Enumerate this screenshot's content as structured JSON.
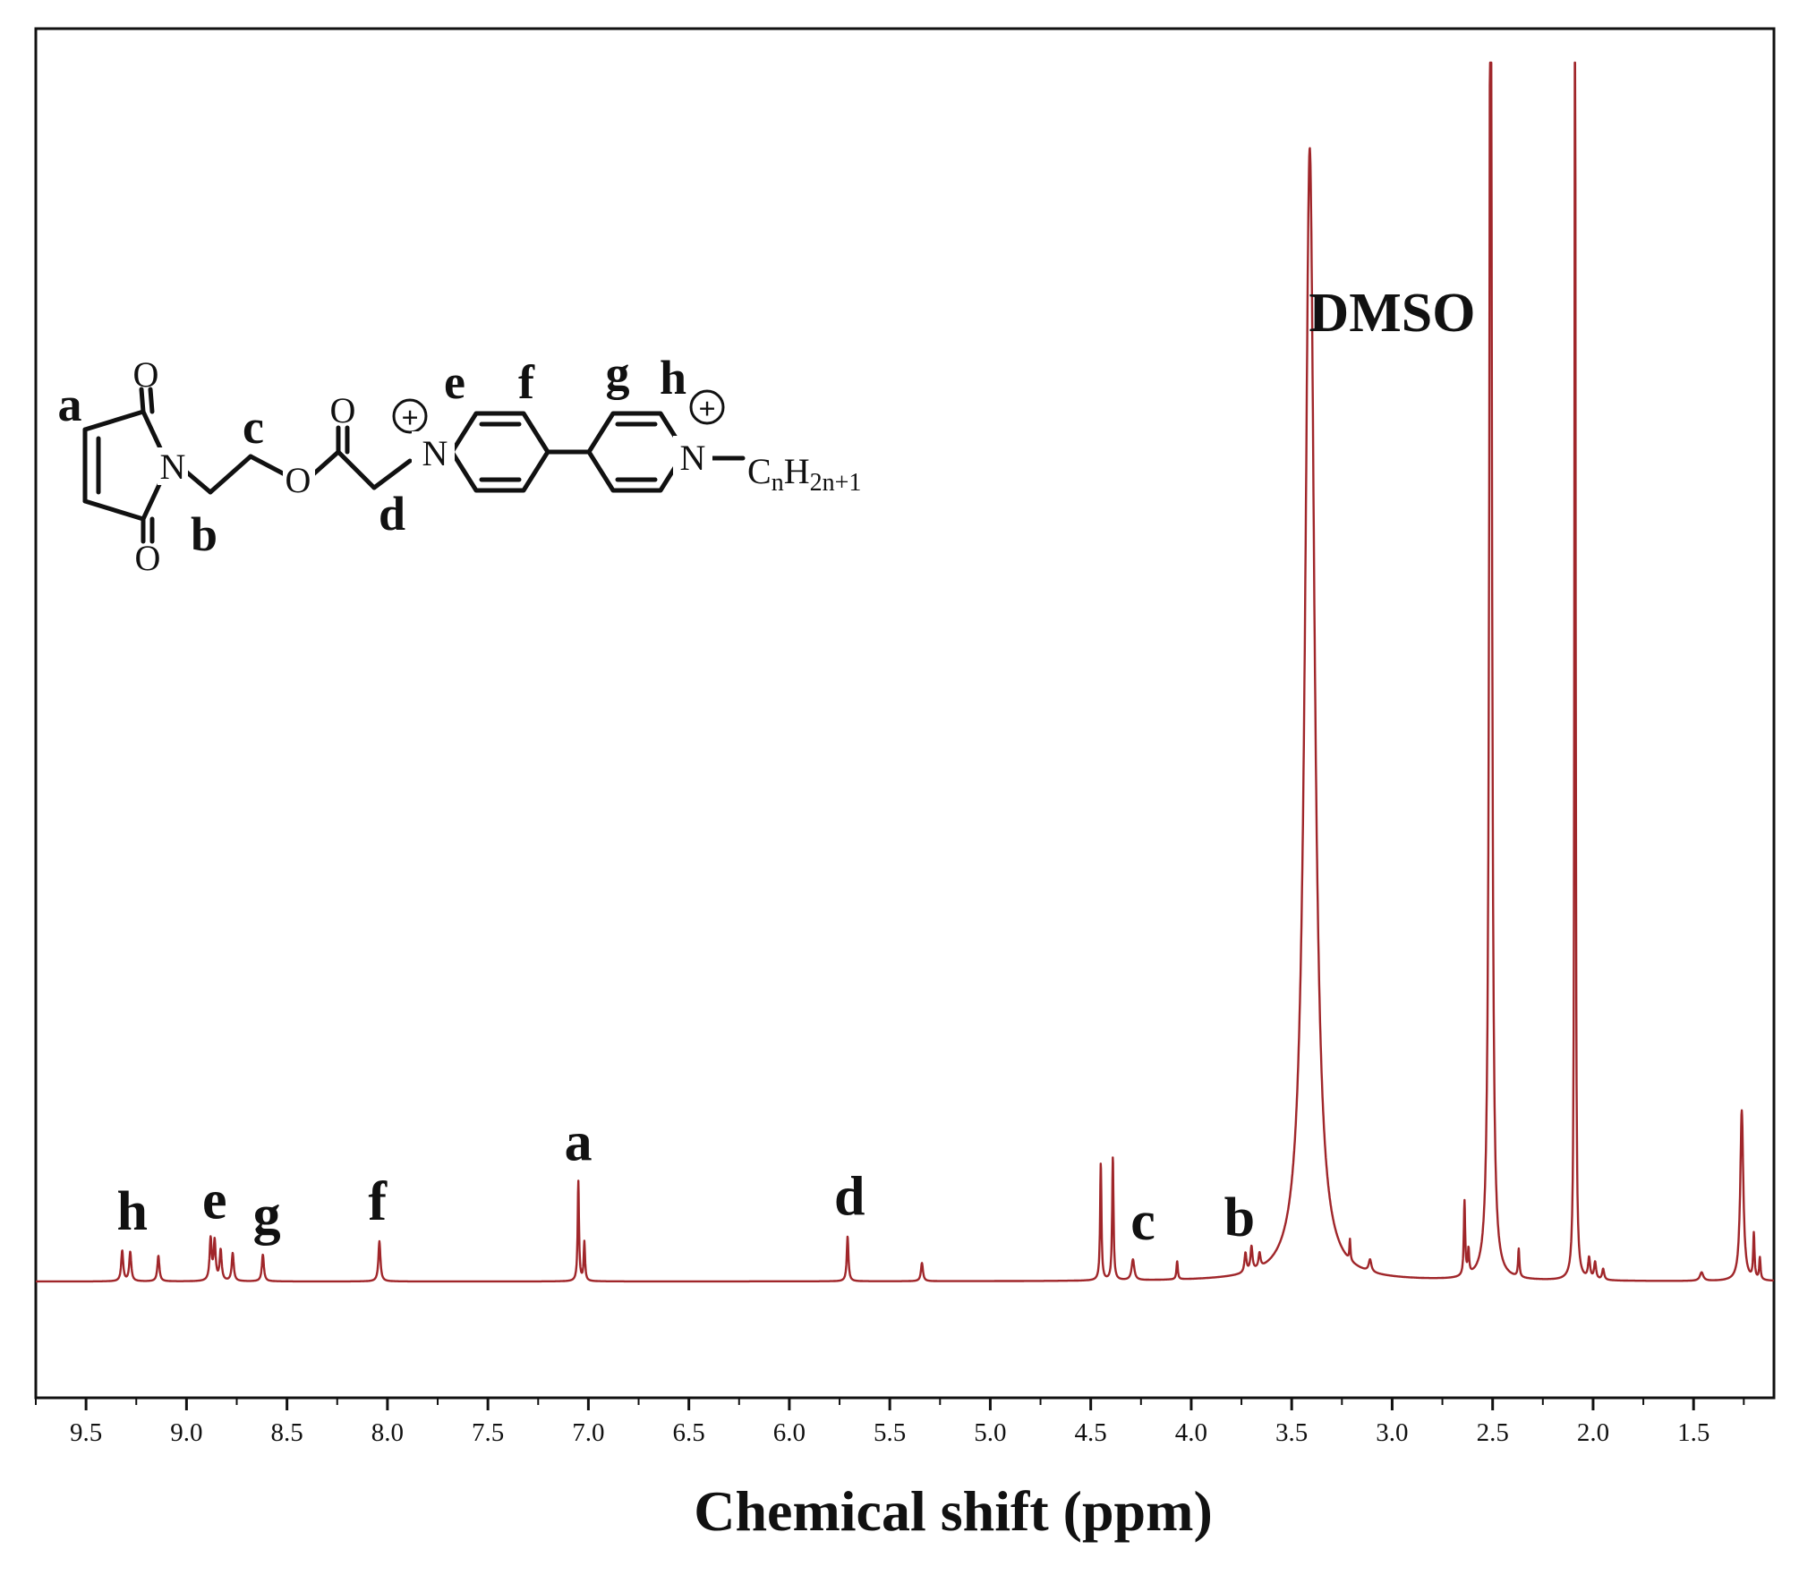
{
  "chart_data": {
    "type": "line",
    "title": "",
    "xlabel": "Chemical shift (ppm)",
    "ylabel": "",
    "xlim": [
      9.75,
      1.1
    ],
    "ylim": [
      -0.08,
      1.0
    ],
    "x_reversed": true,
    "grid": false,
    "legend": "none",
    "series_color": "#a0262a",
    "x_ticks": [
      9.5,
      9.0,
      8.5,
      8.0,
      7.5,
      7.0,
      6.5,
      6.0,
      5.5,
      5.0,
      4.5,
      4.0,
      3.5,
      3.0,
      2.5,
      2.0,
      1.5
    ],
    "x_tick_labels": [
      "9.5",
      "9.0",
      "8.5",
      "8.0",
      "7.5",
      "7.0",
      "6.5",
      "6.0",
      "5.5",
      "5.0",
      "4.5",
      "4.0",
      "3.5",
      "3.0",
      "2.5",
      "2.0",
      "1.5"
    ],
    "series": [
      {
        "name": "",
        "peaks": [
          {
            "x": 9.32,
            "h": 0.025,
            "w": 0.006
          },
          {
            "x": 9.28,
            "h": 0.024,
            "w": 0.006
          },
          {
            "x": 9.14,
            "h": 0.021,
            "w": 0.006
          },
          {
            "x": 8.88,
            "h": 0.034,
            "w": 0.006
          },
          {
            "x": 8.86,
            "h": 0.032,
            "w": 0.006
          },
          {
            "x": 8.83,
            "h": 0.025,
            "w": 0.006
          },
          {
            "x": 8.77,
            "h": 0.023,
            "w": 0.006
          },
          {
            "x": 8.62,
            "h": 0.022,
            "w": 0.006
          },
          {
            "x": 8.04,
            "h": 0.033,
            "w": 0.006
          },
          {
            "x": 7.05,
            "h": 0.082,
            "w": 0.004
          },
          {
            "x": 7.02,
            "h": 0.032,
            "w": 0.004
          },
          {
            "x": 5.71,
            "h": 0.037,
            "w": 0.005
          },
          {
            "x": 5.34,
            "h": 0.015,
            "w": 0.006
          },
          {
            "x": 4.45,
            "h": 0.097,
            "w": 0.004
          },
          {
            "x": 4.39,
            "h": 0.102,
            "w": 0.004
          },
          {
            "x": 4.29,
            "h": 0.017,
            "w": 0.008
          },
          {
            "x": 4.07,
            "h": 0.015,
            "w": 0.004
          },
          {
            "x": 3.73,
            "h": 0.016,
            "w": 0.006
          },
          {
            "x": 3.7,
            "h": 0.02,
            "w": 0.006
          },
          {
            "x": 3.66,
            "h": 0.012,
            "w": 0.006
          },
          {
            "x": 3.41,
            "h": 0.93,
            "w": 0.028
          },
          {
            "x": 3.21,
            "h": 0.017,
            "w": 0.003
          },
          {
            "x": 3.11,
            "h": 0.01,
            "w": 0.008
          },
          {
            "x": 2.64,
            "h": 0.061,
            "w": 0.004
          },
          {
            "x": 2.62,
            "h": 0.02,
            "w": 0.004
          },
          {
            "x": 2.51,
            "h": 1.3,
            "w": 0.007
          },
          {
            "x": 2.37,
            "h": 0.023,
            "w": 0.004
          },
          {
            "x": 2.09,
            "h": 1.3,
            "w": 0.003
          },
          {
            "x": 2.02,
            "h": 0.017,
            "w": 0.006
          },
          {
            "x": 1.99,
            "h": 0.014,
            "w": 0.006
          },
          {
            "x": 1.95,
            "h": 0.009,
            "w": 0.006
          },
          {
            "x": 1.46,
            "h": 0.007,
            "w": 0.01
          },
          {
            "x": 1.26,
            "h": 0.14,
            "w": 0.009
          },
          {
            "x": 1.2,
            "h": 0.037,
            "w": 0.004
          },
          {
            "x": 1.17,
            "h": 0.018,
            "w": 0.004
          }
        ]
      }
    ],
    "annotations": [
      {
        "text": "h",
        "x": 9.27
      },
      {
        "text": "e",
        "x": 8.86
      },
      {
        "text": "g",
        "x": 8.6
      },
      {
        "text": "f",
        "x": 8.05
      },
      {
        "text": "a",
        "x": 7.05
      },
      {
        "text": "d",
        "x": 5.7
      },
      {
        "text": "c",
        "x": 4.24
      },
      {
        "text": "b",
        "x": 3.76
      },
      {
        "text": "DMSO",
        "x": 3.0
      }
    ]
  },
  "structure": {
    "labels": {
      "a": "a",
      "b": "b",
      "c": "c",
      "d": "d",
      "e": "e",
      "f": "f",
      "g": "g",
      "h": "h"
    },
    "atoms": {
      "o_top": "O",
      "o_bottom": "O",
      "o_carbonyl": "O",
      "o_ester": "O",
      "n_imide": "N",
      "n_left": "N",
      "n_right": "N",
      "charge": "+"
    },
    "alkyl": {
      "c": "C",
      "n": "n",
      "h": "H",
      "sub": "2n+1",
      "dash": "−"
    }
  }
}
